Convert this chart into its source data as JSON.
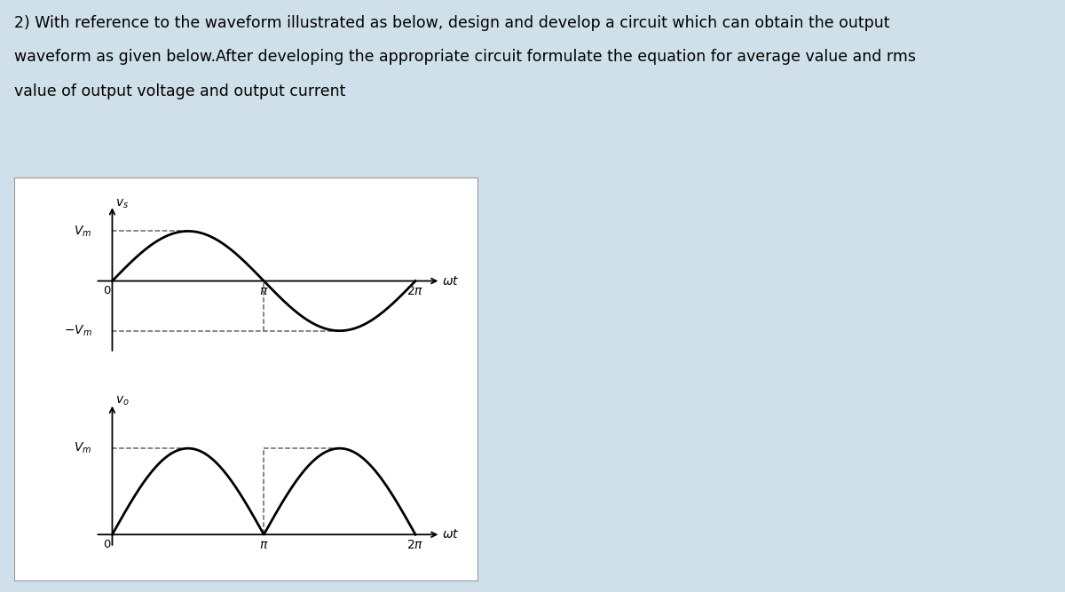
{
  "background_color": "#cfe0ea",
  "panel_bg": "#ffffff",
  "text_color": "#000000",
  "title_lines": [
    "2) With reference to the waveform illustrated as below, design and develop a circuit which can obtain the output",
    "waveform as given below.After developing the appropriate circuit formulate the equation for average value and rms",
    "value of output voltage and output current"
  ],
  "title_fontsize": 12.5,
  "sine_color": "#000000",
  "dashed_color": "#666666",
  "line_width": 2.0,
  "dashed_lw": 1.1,
  "axis_lw": 1.3
}
